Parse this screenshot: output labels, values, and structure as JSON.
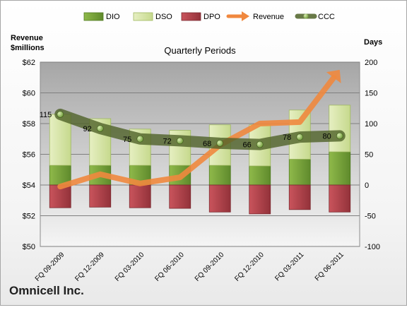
{
  "company": "Omnicell Inc.",
  "chart_data": {
    "type": "bar",
    "title": "Quarterly Periods",
    "left_axis_title": [
      "Revenue",
      "$millions"
    ],
    "right_axis_title": "Days",
    "categories": [
      "FQ 09-2009",
      "FQ 12-2009",
      "FQ 03-2010",
      "FQ 06-2010",
      "FQ 09-2010",
      "FQ 12-2010",
      "FQ 03-2011",
      "FQ 06-2011"
    ],
    "left_axis": {
      "min": 50,
      "max": 62,
      "step": 2,
      "tick_labels": [
        "$50",
        "$52",
        "$54",
        "$56",
        "$58",
        "$60",
        "$62"
      ]
    },
    "right_axis": {
      "min": -100,
      "max": 200,
      "step": 50,
      "tick_labels": [
        "-100",
        "-50",
        "0",
        "50",
        "100",
        "150",
        "200"
      ]
    },
    "legend": {
      "position": "top",
      "entries": [
        "DIO",
        "DSO",
        "DPO",
        "Revenue",
        "CCC"
      ]
    },
    "grid": true,
    "series": [
      {
        "name": "DIO",
        "axis": "right",
        "type": "stacked-bar",
        "color": "#77a33a",
        "values": [
          32,
          32,
          32,
          32,
          32,
          31,
          42,
          54
        ]
      },
      {
        "name": "DSO",
        "axis": "right",
        "type": "stacked-bar",
        "color": "#d7e4a6",
        "values": [
          83,
          76,
          59,
          57,
          66,
          67,
          80,
          76
        ]
      },
      {
        "name": "DPO",
        "axis": "right",
        "type": "stacked-bar",
        "color": "#b4414a",
        "values": [
          -37,
          -36,
          -37,
          -38,
          -44,
          -47,
          -40,
          -44
        ]
      },
      {
        "name": "Revenue",
        "axis": "left",
        "type": "line",
        "color": "#f0883e",
        "values": [
          53.9,
          54.7,
          54.1,
          54.5,
          56.6,
          58.0,
          58.1,
          61.5
        ]
      },
      {
        "name": "CCC",
        "axis": "right",
        "type": "line",
        "color": "#4f6228",
        "values": [
          115,
          92,
          75,
          72,
          68,
          66,
          78,
          80
        ],
        "labels": [
          "115",
          "92",
          "75",
          "72",
          "68",
          "66",
          "78",
          "80"
        ]
      }
    ]
  }
}
